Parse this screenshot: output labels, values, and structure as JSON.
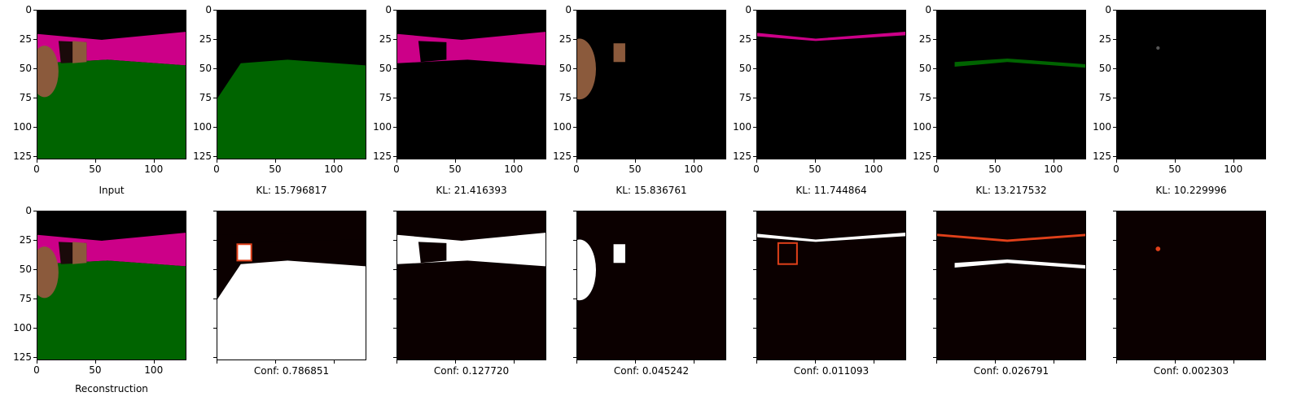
{
  "axes": {
    "x_ticks": [
      "0",
      "50",
      "100"
    ],
    "y_ticks": [
      "0",
      "25",
      "50",
      "75",
      "100",
      "125"
    ],
    "range": [
      0,
      128
    ]
  },
  "colors": {
    "sky": "#000000",
    "wall": "#cc0088",
    "floor": "#006400",
    "object": "#8b5a3c",
    "heat_low": "#0b0000",
    "heat_mid": "#e0401a",
    "heat_high": "#ffffff"
  },
  "top_row": [
    {
      "caption": "Input",
      "kind": "input"
    },
    {
      "caption": "KL: 15.796817",
      "kind": "floor"
    },
    {
      "caption": "KL: 21.416393",
      "kind": "wall"
    },
    {
      "caption": "KL: 15.836761",
      "kind": "object"
    },
    {
      "caption": "KL: 11.744864",
      "kind": "wallline"
    },
    {
      "caption": "KL: 13.217532",
      "kind": "floorline"
    },
    {
      "caption": "KL: 10.229996",
      "kind": "dot"
    }
  ],
  "bottom_row": [
    {
      "caption": "Reconstruction",
      "kind": "input"
    },
    {
      "caption": "Conf: 0.786851",
      "kind": "floor"
    },
    {
      "caption": "Conf: 0.127720",
      "kind": "wall"
    },
    {
      "caption": "Conf: 0.045242",
      "kind": "object"
    },
    {
      "caption": "Conf: 0.011093",
      "kind": "wallline"
    },
    {
      "caption": "Conf: 0.026791",
      "kind": "floorline"
    },
    {
      "caption": "Conf: 0.002303",
      "kind": "dot"
    }
  ]
}
